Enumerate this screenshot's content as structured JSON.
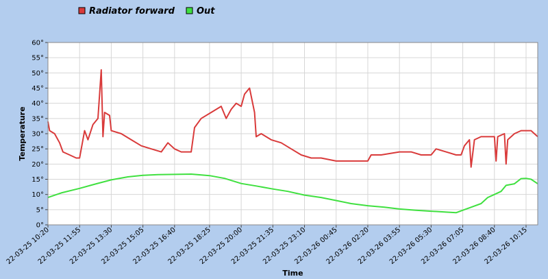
{
  "chart_data": {
    "type": "line",
    "title": "",
    "xlabel": "Time",
    "ylabel": "Temperature",
    "ylim": [
      0,
      60
    ],
    "xlim": [
      "22-03-25 10:20",
      "22-03-26 10:50"
    ],
    "grid": true,
    "legend_position": "top-left",
    "y_ticks": [
      0,
      5,
      10,
      15,
      20,
      25,
      30,
      35,
      40,
      45,
      50,
      55,
      60
    ],
    "y_tick_suffix": "°",
    "x_tick_labels": [
      "22-03-25 10:20",
      "22-03-25 11:55",
      "22-03-25 13:30",
      "22-03-25 15:05",
      "22-03-25 16:40",
      "22-03-25 18:25",
      "22-03-25 20:00",
      "22-03-25 21:35",
      "22-03-25 23:10",
      "22-03-26 00:45",
      "22-03-26 02:20",
      "22-03-26 03:55",
      "22-03-26 05:30",
      "22-03-26 07:05",
      "22-03-26 08:40",
      "22-03-26 10:15"
    ],
    "series": [
      {
        "name": "Radiator forward",
        "color": "#d93a3a",
        "points": [
          [
            "22-03-25 10:20",
            34
          ],
          [
            "22-03-25 10:25",
            31
          ],
          [
            "22-03-25 10:40",
            30
          ],
          [
            "22-03-25 10:55",
            27
          ],
          [
            "22-03-25 11:05",
            24
          ],
          [
            "22-03-25 11:25",
            23
          ],
          [
            "22-03-25 11:45",
            22
          ],
          [
            "22-03-25 11:55",
            22
          ],
          [
            "22-03-25 12:10",
            31
          ],
          [
            "22-03-25 12:20",
            28
          ],
          [
            "22-03-25 12:35",
            33
          ],
          [
            "22-03-25 12:50",
            35
          ],
          [
            "22-03-25 13:00",
            51
          ],
          [
            "22-03-25 13:05",
            29
          ],
          [
            "22-03-25 13:10",
            37
          ],
          [
            "22-03-25 13:25",
            36
          ],
          [
            "22-03-25 13:30",
            31
          ],
          [
            "22-03-25 14:00",
            30
          ],
          [
            "22-03-25 14:30",
            28
          ],
          [
            "22-03-25 15:00",
            26
          ],
          [
            "22-03-25 15:30",
            25
          ],
          [
            "22-03-25 16:00",
            24
          ],
          [
            "22-03-25 16:20",
            27
          ],
          [
            "22-03-25 16:40",
            25
          ],
          [
            "22-03-25 17:00",
            24
          ],
          [
            "22-03-25 17:30",
            24
          ],
          [
            "22-03-25 17:40",
            32
          ],
          [
            "22-03-25 18:00",
            35
          ],
          [
            "22-03-25 18:30",
            37
          ],
          [
            "22-03-25 19:00",
            39
          ],
          [
            "22-03-25 19:15",
            35
          ],
          [
            "22-03-25 19:30",
            38
          ],
          [
            "22-03-25 19:45",
            40
          ],
          [
            "22-03-25 20:00",
            39
          ],
          [
            "22-03-25 20:10",
            43
          ],
          [
            "22-03-25 20:25",
            45
          ],
          [
            "22-03-25 20:40",
            37
          ],
          [
            "22-03-25 20:45",
            29
          ],
          [
            "22-03-25 21:00",
            30
          ],
          [
            "22-03-25 21:30",
            28
          ],
          [
            "22-03-25 22:00",
            27
          ],
          [
            "22-03-25 22:30",
            25
          ],
          [
            "22-03-25 23:00",
            23
          ],
          [
            "22-03-25 23:30",
            22
          ],
          [
            "22-03-26 00:00",
            22
          ],
          [
            "22-03-26 00:45",
            21
          ],
          [
            "22-03-26 01:30",
            21
          ],
          [
            "22-03-26 02:20",
            21
          ],
          [
            "22-03-26 02:30",
            23
          ],
          [
            "22-03-26 03:00",
            23
          ],
          [
            "22-03-26 03:55",
            24
          ],
          [
            "22-03-26 04:30",
            24
          ],
          [
            "22-03-26 05:00",
            23
          ],
          [
            "22-03-26 05:30",
            23
          ],
          [
            "22-03-26 05:45",
            25
          ],
          [
            "22-03-26 06:15",
            24
          ],
          [
            "22-03-26 06:45",
            23
          ],
          [
            "22-03-26 07:00",
            23
          ],
          [
            "22-03-26 07:10",
            26
          ],
          [
            "22-03-26 07:25",
            28
          ],
          [
            "22-03-26 07:30",
            19
          ],
          [
            "22-03-26 07:40",
            28
          ],
          [
            "22-03-26 08:00",
            29
          ],
          [
            "22-03-26 08:20",
            29
          ],
          [
            "22-03-26 08:40",
            29
          ],
          [
            "22-03-26 08:45",
            21
          ],
          [
            "22-03-26 08:50",
            29
          ],
          [
            "22-03-26 09:10",
            30
          ],
          [
            "22-03-26 09:15",
            20
          ],
          [
            "22-03-26 09:20",
            28
          ],
          [
            "22-03-26 09:40",
            30
          ],
          [
            "22-03-26 10:00",
            31
          ],
          [
            "22-03-26 10:15",
            31
          ],
          [
            "22-03-26 10:30",
            31
          ],
          [
            "22-03-26 10:40",
            30
          ],
          [
            "22-03-26 10:50",
            29
          ]
        ]
      },
      {
        "name": "Out",
        "color": "#3fe03f",
        "points": [
          [
            "22-03-25 10:20",
            9
          ],
          [
            "22-03-25 11:00",
            10.5
          ],
          [
            "22-03-25 11:55",
            12
          ],
          [
            "22-03-25 12:45",
            13.5
          ],
          [
            "22-03-25 13:30",
            14.8
          ],
          [
            "22-03-25 14:20",
            15.8
          ],
          [
            "22-03-25 15:05",
            16.3
          ],
          [
            "22-03-25 15:50",
            16.5
          ],
          [
            "22-03-25 16:40",
            16.6
          ],
          [
            "22-03-25 17:30",
            16.7
          ],
          [
            "22-03-25 18:25",
            16.2
          ],
          [
            "22-03-25 19:10",
            15.3
          ],
          [
            "22-03-25 20:00",
            13.6
          ],
          [
            "22-03-25 20:45",
            12.8
          ],
          [
            "22-03-25 21:35",
            11.8
          ],
          [
            "22-03-25 22:20",
            11
          ],
          [
            "22-03-25 23:10",
            9.8
          ],
          [
            "22-03-26 00:00",
            9
          ],
          [
            "22-03-26 00:45",
            8
          ],
          [
            "22-03-26 01:30",
            7
          ],
          [
            "22-03-26 02:20",
            6.3
          ],
          [
            "22-03-26 03:10",
            5.8
          ],
          [
            "22-03-26 03:55",
            5.2
          ],
          [
            "22-03-26 04:45",
            4.8
          ],
          [
            "22-03-26 05:30",
            4.5
          ],
          [
            "22-03-26 06:15",
            4.2
          ],
          [
            "22-03-26 06:45",
            4
          ],
          [
            "22-03-26 07:05",
            4.8
          ],
          [
            "22-03-26 07:30",
            5.8
          ],
          [
            "22-03-26 08:00",
            7
          ],
          [
            "22-03-26 08:20",
            9
          ],
          [
            "22-03-26 08:40",
            10
          ],
          [
            "22-03-26 09:00",
            11
          ],
          [
            "22-03-26 09:15",
            13
          ],
          [
            "22-03-26 09:40",
            13.5
          ],
          [
            "22-03-26 10:00",
            15.2
          ],
          [
            "22-03-26 10:15",
            15.3
          ],
          [
            "22-03-26 10:30",
            15
          ],
          [
            "22-03-26 10:50",
            13.5
          ]
        ]
      }
    ]
  }
}
